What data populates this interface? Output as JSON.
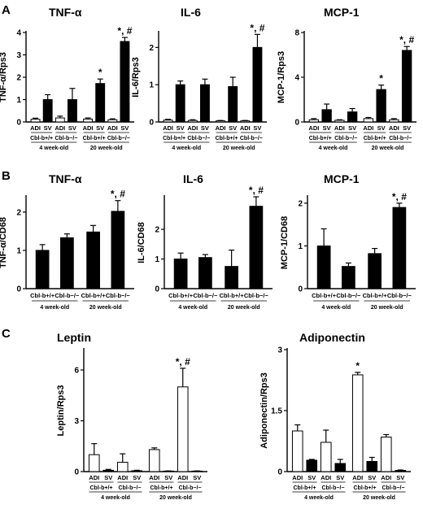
{
  "panel_letters": [
    "A",
    "B",
    "C"
  ],
  "groups": [
    "4 week-old",
    "20 week-old"
  ],
  "chart_data": [
    {
      "type": "bar",
      "panel": "A",
      "title": "TNF-α",
      "ylabel": "TNF-α/Rps3",
      "ylim": [
        0,
        4
      ],
      "yticks": [
        "0",
        "1",
        "2",
        "3",
        "4"
      ],
      "categories": [
        "ADI",
        "SV",
        "ADI",
        "SV",
        "ADI",
        "SV",
        "ADI",
        "SV"
      ],
      "genotypes": [
        "Cbl-b+/+",
        "Cbl-b−/−",
        "Cbl-b+/+",
        "Cbl-b−/−"
      ],
      "fills": [
        "white",
        "black",
        "white",
        "black",
        "white",
        "black",
        "white",
        "black"
      ],
      "values": [
        0.12,
        1.0,
        0.18,
        1.0,
        0.13,
        1.72,
        0.1,
        3.6
      ],
      "errors": [
        0.05,
        0.22,
        0.08,
        0.5,
        0.05,
        0.2,
        0.04,
        0.18
      ],
      "annotations": [
        "",
        "",
        "",
        "",
        "",
        "*",
        "",
        "*, #"
      ]
    },
    {
      "type": "bar",
      "panel": "A",
      "title": "IL-6",
      "ylabel": "IL-6/Rps3",
      "ylim": [
        0,
        2.4
      ],
      "yticks": [
        "0",
        "1",
        "2"
      ],
      "categories": [
        "ADI",
        "SV",
        "ADI",
        "SV",
        "ADI",
        "SV",
        "ADI",
        "SV"
      ],
      "genotypes": [
        "Cbl-b+/+",
        "Cbl-b−/−",
        "Cbl-b+/+",
        "Cbl-b−/−"
      ],
      "fills": [
        "white",
        "black",
        "white",
        "black",
        "white",
        "black",
        "white",
        "black"
      ],
      "values": [
        0.05,
        1.0,
        0.04,
        1.0,
        0.03,
        0.95,
        0.03,
        2.0
      ],
      "errors": [
        0.02,
        0.1,
        0.02,
        0.15,
        0.01,
        0.25,
        0.01,
        0.35
      ],
      "annotations": [
        "",
        "",
        "",
        "",
        "",
        "",
        "",
        "*, #"
      ]
    },
    {
      "type": "bar",
      "panel": "A",
      "title": "MCP-1",
      "ylabel": "MCP-1/Rps3",
      "ylim": [
        0,
        8
      ],
      "yticks": [
        "0",
        "4",
        "8"
      ],
      "categories": [
        "ADI",
        "SV",
        "ADI",
        "SV",
        "ADI",
        "SV",
        "ADI",
        "SV"
      ],
      "genotypes": [
        "Cbl-b+/+",
        "Cbl-b−/−",
        "Cbl-b+/+",
        "Cbl-b−/−"
      ],
      "fills": [
        "white",
        "black",
        "white",
        "black",
        "white",
        "black",
        "white",
        "black"
      ],
      "values": [
        0.2,
        1.1,
        0.15,
        0.9,
        0.3,
        2.9,
        0.2,
        6.4
      ],
      "errors": [
        0.1,
        0.5,
        0.05,
        0.3,
        0.1,
        0.4,
        0.1,
        0.35
      ],
      "annotations": [
        "",
        "",
        "",
        "",
        "",
        "*",
        "",
        "*, #"
      ]
    },
    {
      "type": "bar",
      "panel": "B",
      "title": "TNF-α",
      "ylabel": "TNF-α/CD68",
      "ylim": [
        0,
        2.4
      ],
      "yticks": [
        "0",
        "1",
        "2"
      ],
      "categories": [
        "Cbl-b+/+",
        "Cbl-b−/−",
        "Cbl-b+/+",
        "Cbl-b−/−"
      ],
      "fills": [
        "black",
        "black",
        "black",
        "black"
      ],
      "values": [
        1.0,
        1.33,
        1.48,
        2.02
      ],
      "errors": [
        0.15,
        0.1,
        0.17,
        0.28
      ],
      "annotations": [
        "",
        "",
        "",
        "*, #"
      ]
    },
    {
      "type": "bar",
      "panel": "B",
      "title": "IL-6",
      "ylabel": "IL-6/CD68",
      "ylim": [
        0,
        3.1
      ],
      "yticks": [
        "0",
        "1",
        "2"
      ],
      "categories": [
        "Cbl-b+/+",
        "Cbl-b−/−",
        "Cbl-b+/+",
        "Cbl-b−/−"
      ],
      "fills": [
        "black",
        "black",
        "black",
        "black"
      ],
      "values": [
        1.0,
        1.05,
        0.75,
        2.78
      ],
      "errors": [
        0.2,
        0.1,
        0.55,
        0.32
      ],
      "annotations": [
        "",
        "",
        "",
        "*, #"
      ]
    },
    {
      "type": "bar",
      "panel": "B",
      "title": "MCP-1",
      "ylabel": "MCP-1/CD68",
      "ylim": [
        0,
        2.15
      ],
      "yticks": [
        "0",
        "1",
        "2"
      ],
      "categories": [
        "Cbl-b+/+",
        "Cbl-b−/−",
        "Cbl-b+/+",
        "Cbl-b−/−"
      ],
      "fills": [
        "black",
        "black",
        "black",
        "black"
      ],
      "values": [
        1.0,
        0.52,
        0.82,
        1.9
      ],
      "errors": [
        0.4,
        0.08,
        0.12,
        0.1
      ],
      "annotations": [
        "",
        "",
        "",
        "*, #"
      ]
    },
    {
      "type": "bar",
      "panel": "C",
      "title": "Leptin",
      "ylabel": "Leptin/Rps3",
      "ylim": [
        0,
        7.2
      ],
      "yticks": [
        "0",
        "3",
        "6"
      ],
      "categories": [
        "ADI",
        "SV",
        "ADI",
        "SV",
        "ADI",
        "SV",
        "ADI",
        "SV"
      ],
      "genotypes": [
        "Cbl-b+/+",
        "Cbl-b−/−",
        "Cbl-b+/+",
        "Cbl-b−/−"
      ],
      "fills": [
        "white",
        "black",
        "white",
        "black",
        "white",
        "black",
        "white",
        "black"
      ],
      "values": [
        1.0,
        0.08,
        0.55,
        0.05,
        1.3,
        0.03,
        5.0,
        0.03
      ],
      "errors": [
        0.65,
        0.05,
        0.5,
        0.03,
        0.1,
        0.01,
        1.1,
        0.01
      ],
      "annotations": [
        "",
        "",
        "",
        "",
        "",
        "",
        "*, #",
        ""
      ]
    },
    {
      "type": "bar",
      "panel": "C",
      "title": "Adiponectin",
      "ylabel": "Adiponectin/Rps3",
      "ylim": [
        0,
        3.0
      ],
      "yticks": [
        "0",
        "1.5",
        "3"
      ],
      "categories": [
        "ADI",
        "SV",
        "ADI",
        "SV",
        "ADI",
        "SV",
        "ADI",
        "SV"
      ],
      "genotypes": [
        "Cbl-b+/+",
        "Cbl-b−/−",
        "Cbl-b+/+",
        "Cbl-b−/−"
      ],
      "fills": [
        "white",
        "black",
        "white",
        "black",
        "white",
        "black",
        "white",
        "black"
      ],
      "values": [
        1.0,
        0.28,
        0.72,
        0.2,
        2.38,
        0.25,
        0.85,
        0.03
      ],
      "errors": [
        0.15,
        0.02,
        0.3,
        0.1,
        0.06,
        0.1,
        0.06,
        0.01
      ],
      "annotations": [
        "",
        "",
        "",
        "",
        "*",
        "",
        "",
        ""
      ]
    }
  ]
}
